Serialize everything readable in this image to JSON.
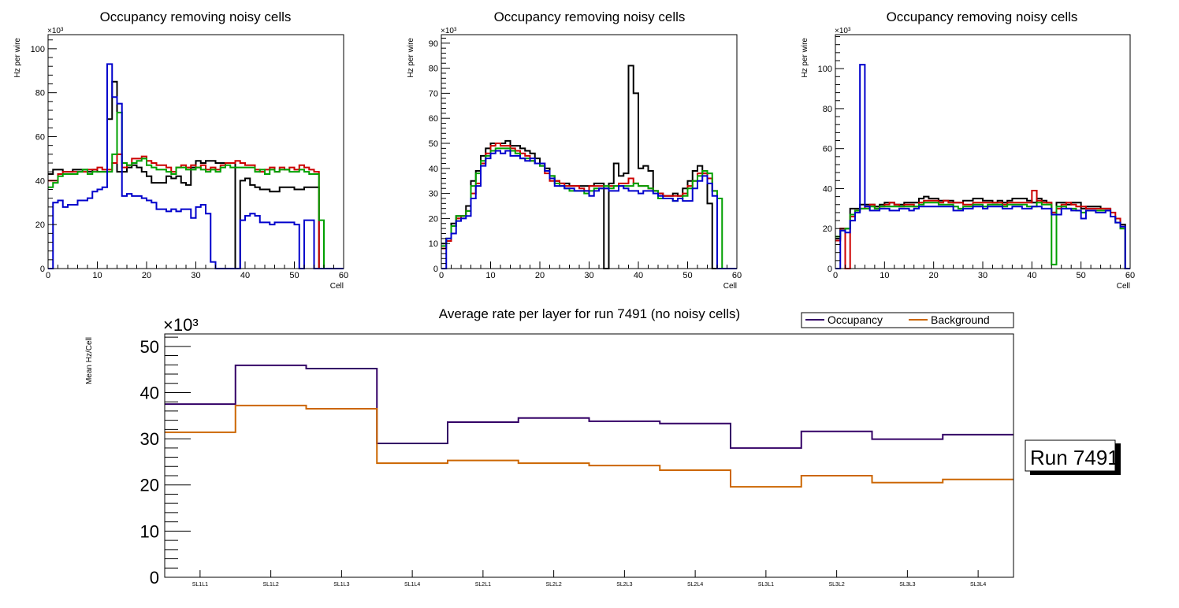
{
  "chart_data": [
    {
      "type": "line",
      "subtype": "step-histogram",
      "title": "Occupancy removing noisy cells",
      "xlabel": "Cell",
      "ylabel": "Hz per wire",
      "yexponent": "×10³",
      "xlim": [
        0,
        60
      ],
      "ylim": [
        0,
        106.4
      ],
      "xticks": [
        0,
        10,
        20,
        30,
        40,
        50,
        60
      ],
      "yticks": [
        0,
        20,
        40,
        60,
        80,
        100
      ],
      "bin_width": 1,
      "series": [
        {
          "name": "black",
          "color": "#000000",
          "values": [
            43,
            45,
            45,
            44,
            44,
            45,
            45,
            45,
            44,
            45,
            44,
            44,
            68,
            85,
            44,
            44,
            46,
            47,
            46,
            44,
            42,
            39,
            39,
            39,
            42,
            41,
            42,
            39,
            38,
            46,
            49,
            48,
            49,
            49,
            48,
            48,
            48,
            48,
            0,
            40,
            41,
            38,
            37,
            36,
            36,
            35,
            35,
            37,
            37,
            37,
            36,
            36,
            37,
            37,
            37,
            0,
            0,
            0,
            0,
            0
          ]
        },
        {
          "name": "red",
          "color": "#cc0000",
          "values": [
            40,
            40,
            43,
            44,
            44,
            44,
            44,
            44,
            45,
            45,
            46,
            45,
            45,
            48,
            52,
            46,
            47,
            50,
            50,
            51,
            49,
            48,
            47,
            47,
            46,
            44,
            46,
            47,
            46,
            47,
            46,
            47,
            45,
            46,
            45,
            47,
            48,
            48,
            49,
            48,
            47,
            47,
            45,
            44,
            45,
            46,
            44,
            46,
            45,
            46,
            45,
            47,
            46,
            45,
            44,
            0,
            0,
            0,
            0,
            0
          ]
        },
        {
          "name": "green",
          "color": "#00a000",
          "values": [
            37,
            39,
            42,
            43,
            43,
            43,
            44,
            45,
            43,
            44,
            44,
            44,
            44,
            52,
            71,
            48,
            47,
            48,
            49,
            50,
            47,
            46,
            45,
            45,
            44,
            43,
            46,
            46,
            45,
            45,
            46,
            45,
            44,
            45,
            44,
            46,
            47,
            46,
            46,
            46,
            46,
            46,
            44,
            45,
            43,
            45,
            44,
            45,
            45,
            44,
            44,
            45,
            44,
            43,
            43,
            22,
            0,
            0,
            0,
            0
          ]
        },
        {
          "name": "blue",
          "color": "#0000cc",
          "values": [
            0,
            30,
            31,
            28,
            29,
            29,
            31,
            31,
            32,
            35,
            36,
            37,
            93,
            78,
            75,
            33,
            34,
            33,
            33,
            32,
            31,
            30,
            27,
            27,
            26,
            27,
            26,
            27,
            27,
            23,
            28,
            29,
            25,
            3,
            0,
            0,
            0,
            0,
            0,
            22,
            24,
            25,
            24,
            21,
            21,
            20,
            21,
            21,
            21,
            21,
            20,
            0,
            22,
            22,
            0,
            0,
            0,
            0,
            0,
            0
          ]
        }
      ]
    },
    {
      "type": "line",
      "subtype": "step-histogram",
      "title": "Occupancy removing noisy cells",
      "xlabel": "Cell",
      "ylabel": "Hz per wire",
      "yexponent": "×10³",
      "xlim": [
        0,
        60
      ],
      "ylim": [
        0,
        93.4
      ],
      "xticks": [
        0,
        10,
        20,
        30,
        40,
        50,
        60
      ],
      "yticks": [
        0,
        10,
        20,
        30,
        40,
        50,
        60,
        70,
        80,
        90
      ],
      "bin_width": 1,
      "series": [
        {
          "name": "black",
          "color": "#000000",
          "values": [
            10,
            12,
            18,
            21,
            21,
            25,
            35,
            39,
            45,
            48,
            50,
            50,
            50,
            51,
            49,
            49,
            48,
            47,
            46,
            44,
            41,
            40,
            37,
            35,
            34,
            34,
            33,
            33,
            33,
            33,
            33,
            34,
            34,
            0,
            34,
            42,
            37,
            38,
            81,
            70,
            40,
            41,
            39,
            31,
            30,
            29,
            29,
            30,
            29,
            32,
            35,
            39,
            41,
            38,
            26,
            0,
            0,
            0,
            0,
            0
          ]
        },
        {
          "name": "red",
          "color": "#cc0000",
          "values": [
            8,
            11,
            17,
            20,
            21,
            23,
            30,
            34,
            42,
            46,
            49,
            50,
            49,
            49,
            48,
            47,
            46,
            45,
            43,
            42,
            42,
            38,
            35,
            35,
            34,
            33,
            33,
            33,
            32,
            31,
            33,
            33,
            33,
            32,
            33,
            33,
            34,
            34,
            36,
            34,
            33,
            33,
            32,
            31,
            30,
            29,
            29,
            29,
            29,
            30,
            33,
            35,
            38,
            38,
            36,
            31,
            0,
            0,
            0,
            0
          ]
        },
        {
          "name": "green",
          "color": "#00a000",
          "values": [
            9,
            12,
            17,
            21,
            21,
            23,
            33,
            38,
            43,
            45,
            47,
            48,
            48,
            48,
            47,
            46,
            44,
            44,
            43,
            42,
            41,
            39,
            37,
            34,
            33,
            32,
            31,
            31,
            31,
            30,
            31,
            32,
            32,
            33,
            32,
            33,
            33,
            33,
            33,
            34,
            33,
            33,
            32,
            31,
            28,
            28,
            28,
            27,
            28,
            29,
            32,
            35,
            37,
            39,
            38,
            31,
            28,
            0,
            0,
            0
          ]
        },
        {
          "name": "blue",
          "color": "#0000cc",
          "values": [
            0,
            12,
            14,
            19,
            20,
            21,
            28,
            33,
            41,
            44,
            46,
            47,
            46,
            47,
            45,
            45,
            44,
            43,
            44,
            42,
            42,
            39,
            36,
            33,
            33,
            32,
            32,
            31,
            31,
            31,
            29,
            31,
            32,
            32,
            31,
            31,
            33,
            32,
            31,
            31,
            30,
            31,
            31,
            30,
            29,
            28,
            28,
            27,
            28,
            27,
            27,
            32,
            35,
            37,
            34,
            29,
            0,
            0,
            0,
            0
          ]
        }
      ]
    },
    {
      "type": "line",
      "subtype": "step-histogram",
      "title": "Occupancy removing noisy cells",
      "xlabel": "Cell",
      "ylabel": "Hz per wire",
      "yexponent": "×10³",
      "xlim": [
        0,
        60
      ],
      "ylim": [
        0,
        117
      ],
      "xticks": [
        0,
        10,
        20,
        30,
        40,
        50,
        60
      ],
      "yticks": [
        0,
        20,
        40,
        60,
        80,
        100
      ],
      "bin_width": 1,
      "series": [
        {
          "name": "black",
          "color": "#000000",
          "values": [
            15,
            20,
            20,
            30,
            30,
            32,
            32,
            32,
            31,
            32,
            33,
            33,
            32,
            32,
            33,
            33,
            33,
            35,
            36,
            35,
            35,
            34,
            34,
            34,
            33,
            33,
            34,
            34,
            35,
            35,
            34,
            34,
            33,
            34,
            33,
            34,
            35,
            35,
            35,
            34,
            33,
            35,
            34,
            33,
            28,
            33,
            33,
            32,
            33,
            33,
            30,
            31,
            31,
            31,
            30,
            30,
            26,
            25,
            22,
            0
          ]
        },
        {
          "name": "red",
          "color": "#cc0000",
          "values": [
            14,
            20,
            0,
            26,
            29,
            30,
            31,
            32,
            30,
            31,
            32,
            33,
            32,
            31,
            32,
            32,
            31,
            33,
            34,
            34,
            34,
            33,
            34,
            33,
            33,
            33,
            32,
            32,
            33,
            33,
            33,
            33,
            33,
            33,
            32,
            33,
            33,
            33,
            33,
            33,
            39,
            34,
            33,
            33,
            28,
            30,
            32,
            33,
            32,
            31,
            31,
            30,
            30,
            30,
            30,
            30,
            28,
            25,
            21,
            0
          ]
        },
        {
          "name": "green",
          "color": "#00a000",
          "values": [
            16,
            19,
            20,
            27,
            29,
            30,
            30,
            31,
            30,
            31,
            31,
            31,
            31,
            31,
            31,
            31,
            31,
            32,
            33,
            33,
            33,
            32,
            32,
            32,
            31,
            30,
            31,
            31,
            32,
            32,
            31,
            32,
            32,
            32,
            31,
            32,
            32,
            32,
            32,
            31,
            31,
            33,
            32,
            32,
            2,
            31,
            31,
            30,
            30,
            29,
            28,
            29,
            29,
            29,
            29,
            29,
            26,
            23,
            20,
            0
          ]
        },
        {
          "name": "blue",
          "color": "#0000cc",
          "values": [
            0,
            19,
            18,
            24,
            28,
            102,
            31,
            29,
            29,
            30,
            30,
            29,
            29,
            30,
            30,
            29,
            30,
            31,
            31,
            31,
            31,
            31,
            31,
            31,
            29,
            29,
            30,
            30,
            31,
            31,
            30,
            31,
            31,
            31,
            30,
            30,
            31,
            31,
            30,
            30,
            31,
            31,
            30,
            30,
            27,
            27,
            30,
            30,
            29,
            29,
            25,
            29,
            29,
            28,
            28,
            29,
            26,
            23,
            21,
            0
          ]
        }
      ]
    },
    {
      "type": "line",
      "subtype": "step-histogram",
      "title": "Average rate per layer for run 7491 (no noisy cells)",
      "xlabel": "",
      "ylabel": "Mean Hz/Cell",
      "yexponent": "×10³",
      "categories": [
        "SL1L1",
        "SL1L2",
        "SL1L3",
        "SL1L4",
        "SL2L1",
        "SL2L2",
        "SL2L3",
        "SL2L4",
        "SL3L1",
        "SL3L2",
        "SL3L3",
        "SL3L4"
      ],
      "ylim": [
        0,
        52.7
      ],
      "yticks": [
        0,
        10,
        20,
        30,
        40,
        50
      ],
      "legend": {
        "position": "top-right",
        "entries": [
          "Occupancy",
          "Background"
        ]
      },
      "series": [
        {
          "name": "Occupancy",
          "color": "#330066",
          "values": [
            37.5,
            45.9,
            45.2,
            29.0,
            33.6,
            34.5,
            33.8,
            33.3,
            28.0,
            31.6,
            29.9,
            30.9
          ]
        },
        {
          "name": "Background",
          "color": "#cc6600",
          "values": [
            31.4,
            37.2,
            36.5,
            24.7,
            25.3,
            24.7,
            24.2,
            23.2,
            19.6,
            22.0,
            20.5,
            21.2
          ]
        }
      ],
      "annotation": "Run 7491"
    }
  ]
}
